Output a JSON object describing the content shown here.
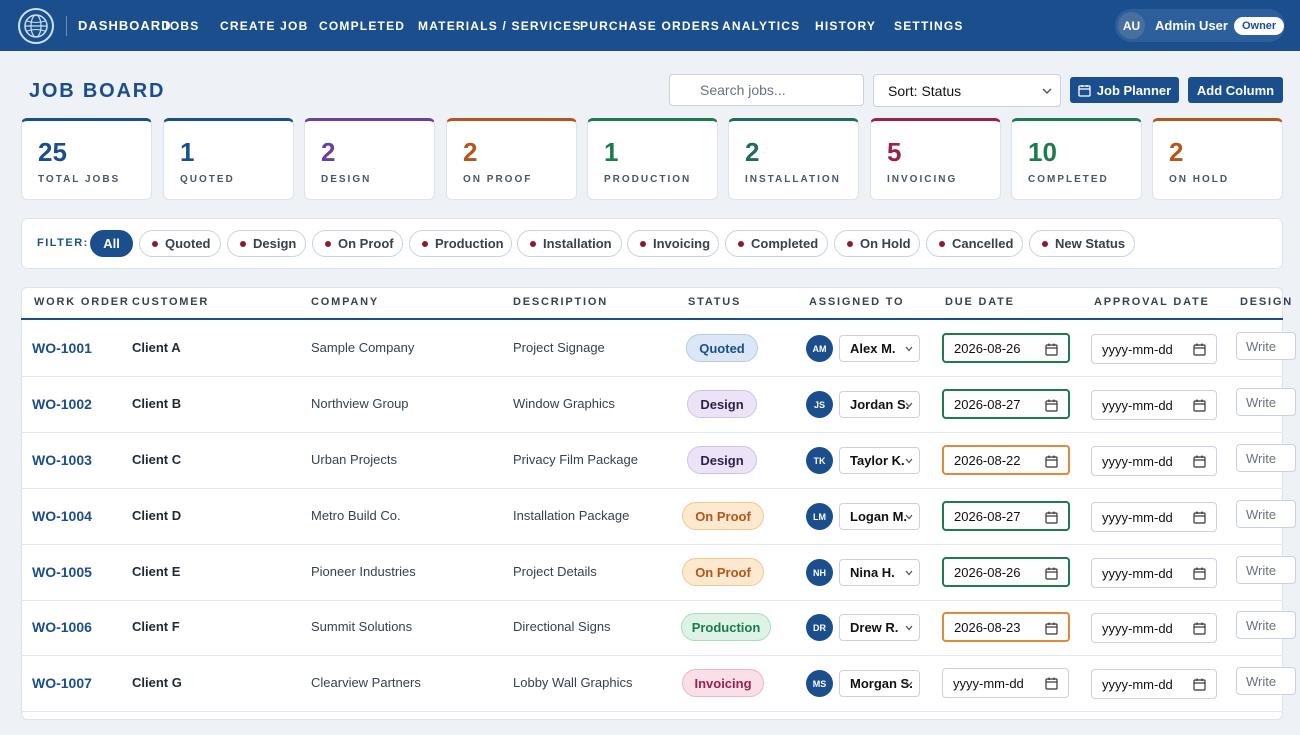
{
  "nav": {
    "brand": "DASHBOARD",
    "links": [
      "JOBS",
      "CREATE JOB",
      "COMPLETED",
      "MATERIALS / SERVICES",
      "PURCHASE ORDERS",
      "ANALYTICS",
      "HISTORY",
      "SETTINGS"
    ],
    "user_initials": "AU",
    "user_name": "Admin User",
    "user_role": "Owner"
  },
  "header": {
    "title": "JOB BOARD",
    "search_placeholder": "Search jobs...",
    "sort_value": "Sort: Status",
    "job_planner_label": "Job Planner",
    "add_column_label": "Add Column"
  },
  "stats": [
    {
      "value": "25",
      "label": "Total Jobs",
      "color": "#1b4e8c"
    },
    {
      "value": "1",
      "label": "Quoted",
      "color": "#1b4e8c"
    },
    {
      "value": "2",
      "label": "Design",
      "color": "#6b3fa0"
    },
    {
      "value": "2",
      "label": "On Proof",
      "color": "#b5541b"
    },
    {
      "value": "1",
      "label": "Production",
      "color": "#1f7a4d"
    },
    {
      "value": "2",
      "label": "Installation",
      "color": "#1f6b5e"
    },
    {
      "value": "5",
      "label": "Invoicing",
      "color": "#9e1f4a"
    },
    {
      "value": "10",
      "label": "Completed",
      "color": "#1f7a4d"
    },
    {
      "value": "2",
      "label": "On Hold",
      "color": "#b5541b"
    }
  ],
  "filter": {
    "label": "FILTER:",
    "chips": [
      "All",
      "Quoted",
      "Design",
      "On Proof",
      "Production",
      "Installation",
      "Invoicing",
      "Completed",
      "On Hold",
      "Cancelled",
      "New Status"
    ]
  },
  "table": {
    "columns": [
      "WORK ORDER",
      "CUSTOMER",
      "COMPANY",
      "DESCRIPTION",
      "STATUS",
      "ASSIGNED TO",
      "DUE DATE",
      "APPROVAL DATE",
      "DESIGN"
    ],
    "date_placeholder": "yyyy-mm-dd",
    "write_placeholder": "Write",
    "rows": [
      {
        "wo": "WO-1001",
        "customer": "Client A",
        "company": "Sample Company",
        "description": "Project Signage",
        "status": "Quoted",
        "initials": "AM",
        "assignee": "Alex M.",
        "due": "2026-08-26",
        "approval": "yyyy-mm-dd"
      },
      {
        "wo": "WO-1002",
        "customer": "Client B",
        "company": "Northview Group",
        "description": "Window Graphics",
        "status": "Design",
        "initials": "JS",
        "assignee": "Jordan S.",
        "due": "2026-08-27",
        "approval": "yyyy-mm-dd"
      },
      {
        "wo": "WO-1003",
        "customer": "Client C",
        "company": "Urban Projects",
        "description": "Privacy Film Package",
        "status": "Design",
        "initials": "TK",
        "assignee": "Taylor K.",
        "due": "2026-08-22",
        "approval": "yyyy-mm-dd"
      },
      {
        "wo": "WO-1004",
        "customer": "Client D",
        "company": "Metro Build Co.",
        "description": "Installation Package",
        "status": "On Proof",
        "initials": "LM",
        "assignee": "Logan M.",
        "due": "2026-08-27",
        "approval": "yyyy-mm-dd"
      },
      {
        "wo": "WO-1005",
        "customer": "Client E",
        "company": "Pioneer Industries",
        "description": "Project Details",
        "status": "On Proof",
        "initials": "NH",
        "assignee": "Nina H.",
        "due": "2026-08-26",
        "approval": "yyyy-mm-dd"
      },
      {
        "wo": "WO-1006",
        "customer": "Client F",
        "company": "Summit Solutions",
        "description": "Directional Signs",
        "status": "Production",
        "initials": "DR",
        "assignee": "Drew R.",
        "due": "2026-08-23",
        "approval": "yyyy-mm-dd"
      },
      {
        "wo": "WO-1007",
        "customer": "Client G",
        "company": "Clearview Partners",
        "description": "Lobby Wall Graphics",
        "status": "Invoicing",
        "initials": "MS",
        "assignee": "Morgan S.",
        "due": "yyyy-mm-dd",
        "approval": "yyyy-mm-dd"
      }
    ]
  },
  "status_styles": {
    "Quoted": {
      "bg": "#dbe7f6",
      "fg": "#1b4e8c",
      "border": "#b4cbe8"
    },
    "Design": {
      "bg": "#ece4f6",
      "fg": "#2e1f4a",
      "border": "#d2c2e8"
    },
    "On Proof": {
      "bg": "#fde9cf",
      "fg": "#b5541b",
      "border": "#f2c78f"
    },
    "Production": {
      "bg": "#dcf3e6",
      "fg": "#1f7a4d",
      "border": "#a8dcbe"
    },
    "Invoicing": {
      "bg": "#f9dfe8",
      "fg": "#9e1f4a",
      "border": "#eeb3c8"
    }
  },
  "due_borders": {
    "2026-08-26": "#1f7a4d",
    "2026-08-27": "#1f7a4d",
    "2026-08-22": "#e0893a",
    "2026-08-23": "#e0893a"
  }
}
